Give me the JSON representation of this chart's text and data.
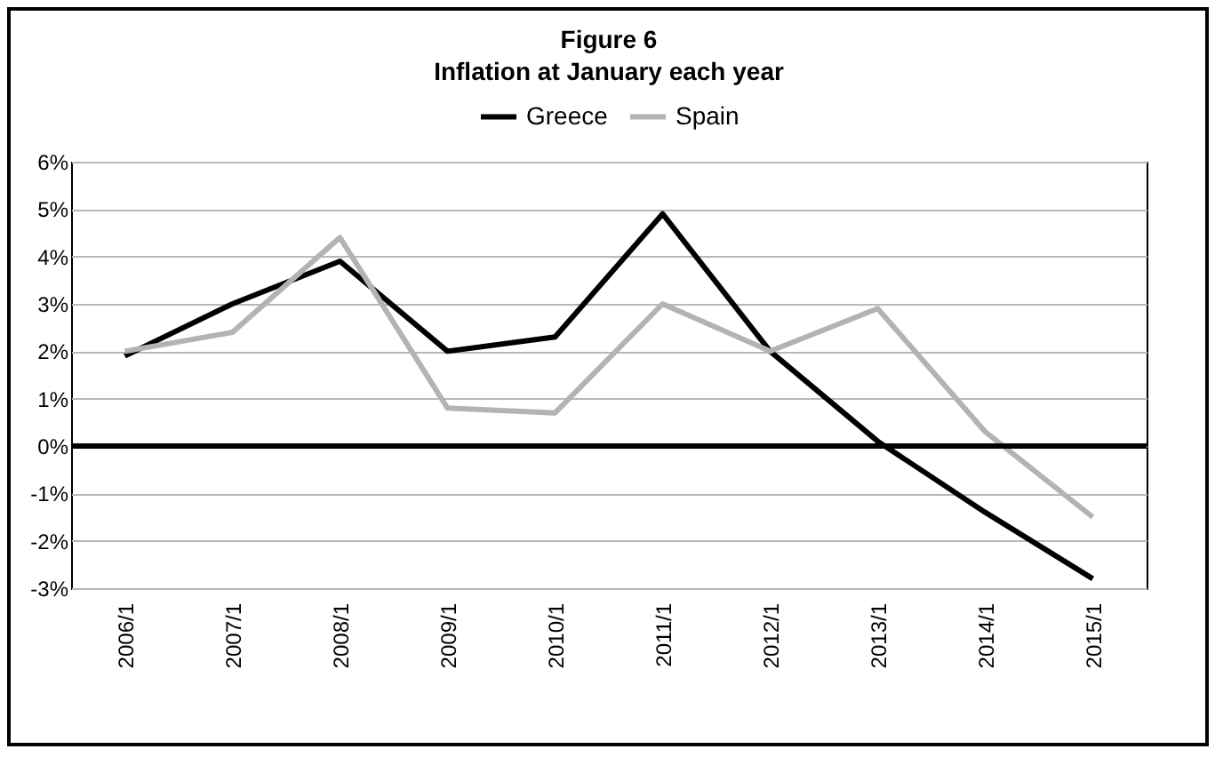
{
  "chart_data": {
    "type": "line",
    "title": "Figure 6",
    "subtitle": "Inflation at January each year",
    "categories": [
      "2006/1",
      "2007/1",
      "2008/1",
      "2009/1",
      "2010/1",
      "2011/1",
      "2012/1",
      "2013/1",
      "2014/1",
      "2015/1"
    ],
    "series": [
      {
        "name": "Greece",
        "color": "#000000",
        "values": [
          1.9,
          3.0,
          3.9,
          2.0,
          2.3,
          4.9,
          2.0,
          0.1,
          -1.4,
          -2.8
        ]
      },
      {
        "name": "Spain",
        "color": "#b3b3b3",
        "values": [
          2.0,
          2.4,
          4.4,
          0.8,
          0.7,
          3.0,
          2.0,
          2.9,
          0.3,
          -1.5
        ]
      }
    ],
    "ylim": [
      -3,
      6
    ],
    "yticks": [
      {
        "value": -3,
        "label": "-3%"
      },
      {
        "value": -2,
        "label": "-2%"
      },
      {
        "value": -1,
        "label": "-1%"
      },
      {
        "value": 0,
        "label": "0%"
      },
      {
        "value": 1,
        "label": "1%"
      },
      {
        "value": 2,
        "label": "2%"
      },
      {
        "value": 3,
        "label": "3%"
      },
      {
        "value": 4,
        "label": "4%"
      },
      {
        "value": 5,
        "label": "5%"
      },
      {
        "value": 6,
        "label": "6%"
      }
    ],
    "grid": "y",
    "legend": "top",
    "marker": "none",
    "line_style": "solid"
  }
}
